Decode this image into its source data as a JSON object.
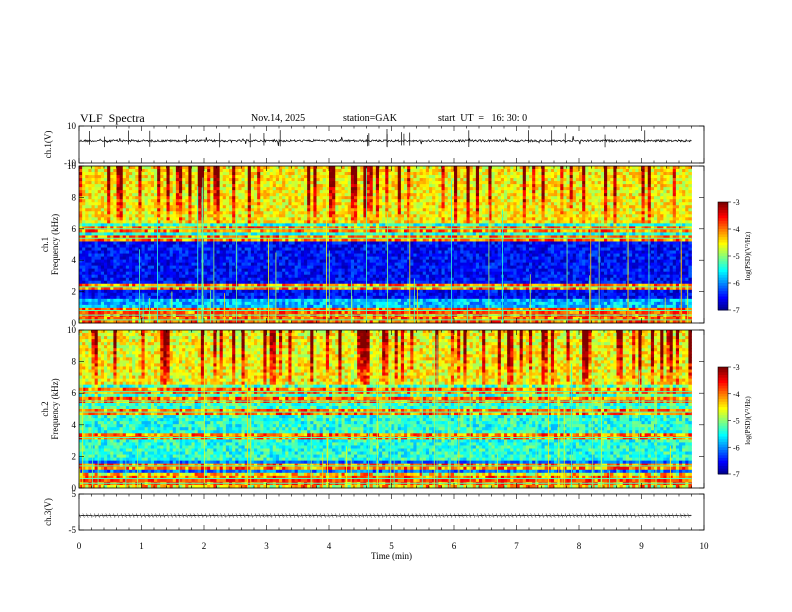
{
  "header": {
    "title": "VLF  Spectra",
    "date": "Nov.14, 2025",
    "station": "station=GAK",
    "start_ut": "start  UT  =   16: 30: 0"
  },
  "chart_data": [
    {
      "type": "line",
      "name": "ch1-waveform",
      "ylabel": "ch.1(V)",
      "ylim": [
        -10,
        10
      ],
      "yticks": [
        "10",
        "-10"
      ],
      "xlim": [
        0,
        10
      ],
      "baseline": 2,
      "data_extent_min": 9.8
    },
    {
      "type": "heatmap",
      "name": "ch1-spectrogram",
      "ylabel": "ch.1\nFrequency  (kHz)",
      "ylim": [
        0,
        10
      ],
      "yticks": [
        "0",
        "2",
        "4",
        "6",
        "8",
        "10"
      ],
      "xlim": [
        0,
        10
      ],
      "data_extent_min": 9.8,
      "colorbar": {
        "label": "log(PSD)(V²/Hz)",
        "ticks": [
          "-3",
          "-4",
          "-5",
          "-6",
          "-7"
        ],
        "range": [
          -7,
          -3
        ]
      },
      "bands_khz": [
        0.2,
        0.5,
        0.8,
        2.3,
        5.4,
        6.0
      ]
    },
    {
      "type": "heatmap",
      "name": "ch2-spectrogram",
      "ylabel": "ch.2\nFrequency  (kHz)",
      "ylim": [
        0,
        10
      ],
      "yticks": [
        "0",
        "2",
        "4",
        "6",
        "8",
        "10"
      ],
      "xlim": [
        0,
        10
      ],
      "data_extent_min": 9.8,
      "colorbar": {
        "label": "log(PSD)(V²/Hz)",
        "ticks": [
          "-3",
          "-4",
          "-5",
          "-6",
          "-7"
        ],
        "range": [
          -7,
          -3
        ]
      },
      "bands_khz": [
        0.3,
        0.6,
        1.4,
        3.2,
        4.8,
        5.5,
        6.1
      ]
    },
    {
      "type": "line",
      "name": "ch3-waveform",
      "ylabel": "ch.3(V)",
      "ylim": [
        -5,
        5
      ],
      "yticks": [
        "5",
        "-5"
      ],
      "xlim": [
        0,
        10
      ],
      "baseline": -1,
      "data_extent_min": 9.8
    }
  ],
  "xaxis": {
    "label": "Time  (min)",
    "ticks": [
      "0",
      "1",
      "2",
      "3",
      "4",
      "5",
      "6",
      "7",
      "8",
      "9",
      "10"
    ]
  }
}
